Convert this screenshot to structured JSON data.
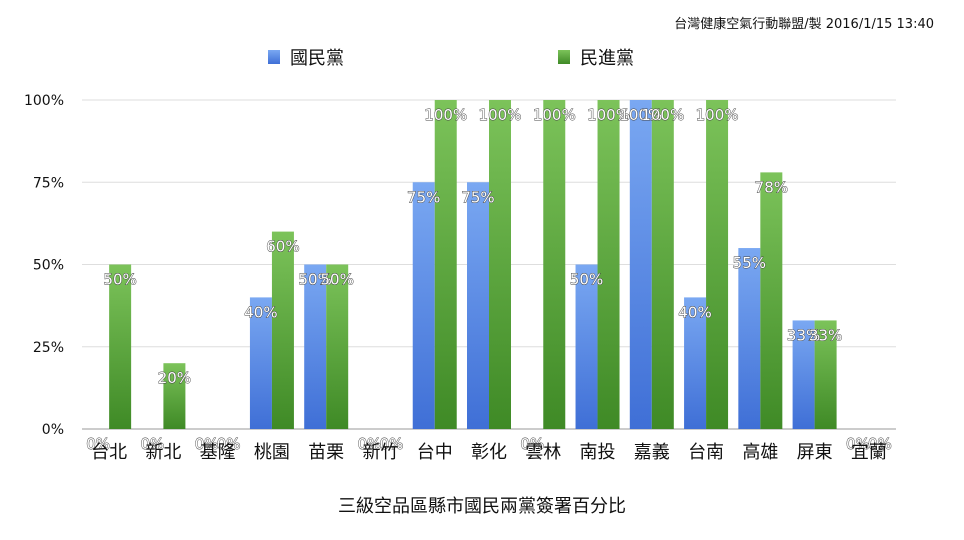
{
  "chart_data": {
    "type": "bar",
    "credit": "台灣健康空氣行動聯盟/製 2016/1/15 13:40",
    "xlabel": "三級空品區縣市國民兩黨簽署百分比",
    "ylabel": "",
    "ylim": [
      0,
      100
    ],
    "y_ticks": [
      "0%",
      "25%",
      "50%",
      "75%",
      "100%"
    ],
    "grid": true,
    "legend_position": "top",
    "categories": [
      "台北",
      "新北",
      "基隆",
      "桃園",
      "苗栗",
      "新竹",
      "台中",
      "彰化",
      "雲林",
      "南投",
      "嘉義",
      "台南",
      "高雄",
      "屏東",
      "宜蘭"
    ],
    "series": [
      {
        "name": "國民黨",
        "color": "#5b8fe8",
        "values": [
          0,
          0,
          0,
          40,
          50,
          0,
          75,
          75,
          0,
          50,
          100,
          40,
          55,
          33,
          0
        ],
        "labels": [
          "0%",
          "0%",
          "0%",
          "40%",
          "50%",
          "0%",
          "75%",
          "75%",
          "0%",
          "50%",
          "100%",
          "40%",
          "55%",
          "33%",
          "0%"
        ]
      },
      {
        "name": "民進黨",
        "color": "#5da93c",
        "values": [
          50,
          20,
          0,
          60,
          50,
          0,
          100,
          100,
          100,
          100,
          100,
          100,
          78,
          33,
          0
        ],
        "labels": [
          "50%",
          "20%",
          "0%",
          "60%",
          "50%",
          "0%",
          "100%",
          "100%",
          "100%",
          "100%",
          "100%",
          "100%",
          "78%",
          "33%",
          "0%"
        ]
      }
    ]
  }
}
